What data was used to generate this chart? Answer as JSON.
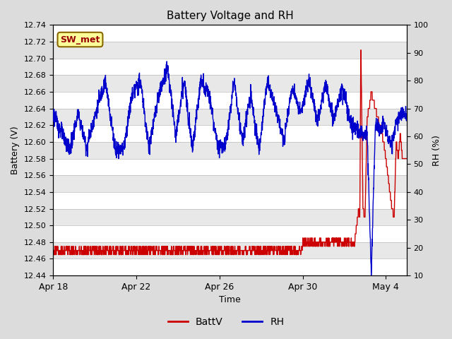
{
  "title": "Battery Voltage and RH",
  "xlabel": "Time",
  "ylabel_left": "Battery (V)",
  "ylabel_right": "RH (%)",
  "ylim_left": [
    12.44,
    12.74
  ],
  "ylim_right": [
    10,
    100
  ],
  "yticks_left": [
    12.44,
    12.46,
    12.48,
    12.5,
    12.52,
    12.54,
    12.56,
    12.58,
    12.6,
    12.62,
    12.64,
    12.66,
    12.68,
    12.7,
    12.72,
    12.74
  ],
  "yticks_right": [
    10,
    20,
    30,
    40,
    50,
    60,
    70,
    80,
    90,
    100
  ],
  "xtick_labels": [
    "Apr 18",
    "Apr 22",
    "Apr 26",
    "Apr 30",
    "May 4"
  ],
  "xtick_positions": [
    0,
    4,
    8,
    12,
    16
  ],
  "label_box_text": "SW_met",
  "label_box_facecolor": "#FFFF99",
  "label_box_edgecolor": "#886600",
  "label_box_textcolor": "#990000",
  "battv_color": "#CC0000",
  "rh_color": "#0000CC",
  "bg_color": "#DCDCDC",
  "plot_bg_color": "#F0F0F0",
  "strip_color": "#E8E8E8",
  "grid_color": "#FFFFFF",
  "legend_battv": "BattV",
  "legend_rh": "RH",
  "xlim": [
    0,
    17
  ],
  "num_points": 2000,
  "rh_key_times": [
    0,
    0.3,
    0.8,
    1.2,
    1.6,
    2.0,
    2.5,
    3.0,
    3.4,
    3.8,
    4.2,
    4.6,
    5.1,
    5.5,
    5.9,
    6.3,
    6.7,
    7.1,
    7.5,
    7.9,
    8.3,
    8.7,
    9.1,
    9.5,
    9.9,
    10.3,
    10.7,
    11.1,
    11.5,
    11.9,
    12.3,
    12.7,
    13.1,
    13.5,
    13.9,
    14.3,
    14.7,
    15.0,
    15.1,
    15.3,
    15.5,
    15.7,
    15.9,
    16.1,
    16.3,
    16.5,
    16.7,
    17.0
  ],
  "rh_key_vals": [
    68,
    63,
    55,
    68,
    56,
    67,
    80,
    55,
    56,
    75,
    80,
    56,
    75,
    85,
    60,
    80,
    56,
    80,
    75,
    57,
    57,
    80,
    58,
    75,
    55,
    80,
    70,
    58,
    78,
    68,
    80,
    65,
    79,
    66,
    78,
    65,
    62,
    61,
    62,
    10,
    65,
    62,
    65,
    59,
    57,
    65,
    68,
    68
  ],
  "battv_key_times": [
    0,
    11.5,
    12.0,
    12.5,
    13.0,
    13.5,
    14.0,
    14.5,
    14.7,
    14.75,
    14.8,
    14.9,
    15.0,
    15.1,
    15.2,
    15.3,
    15.4,
    15.5,
    15.6,
    15.7,
    15.8,
    15.9,
    16.0,
    16.1,
    16.2,
    16.3,
    16.4,
    16.5,
    16.6,
    16.7,
    16.8,
    17.0
  ],
  "battv_key_vals": [
    12.47,
    12.47,
    12.475,
    12.48,
    12.48,
    12.475,
    12.48,
    12.48,
    12.52,
    12.51,
    12.72,
    12.52,
    12.51,
    12.63,
    12.64,
    12.66,
    12.65,
    12.64,
    12.63,
    12.62,
    12.61,
    12.6,
    12.58,
    12.56,
    12.54,
    12.52,
    12.51,
    12.6,
    12.58,
    12.61,
    12.58,
    12.58
  ]
}
